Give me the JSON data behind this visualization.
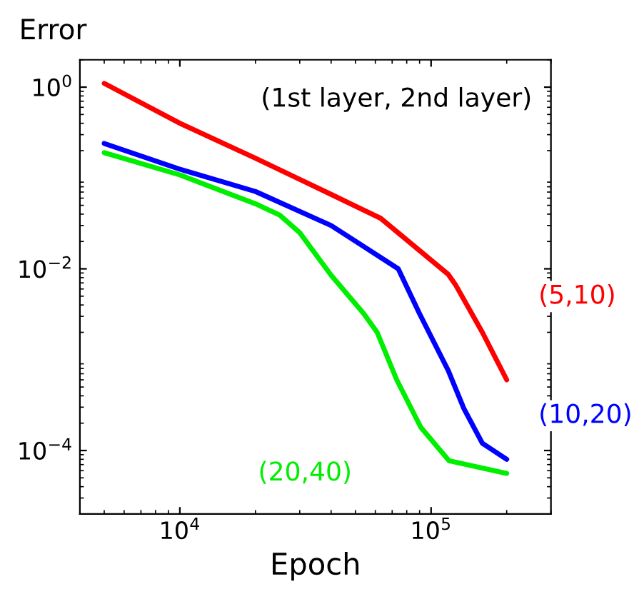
{
  "chart_data": {
    "type": "line",
    "xlabel": "Epoch",
    "ylabel": "Error",
    "log": "xy",
    "grid": false,
    "legend": false,
    "marker": "none",
    "line_style": "solid",
    "annotations": [
      "(1st layer, 2nd layer)"
    ],
    "xlim": [
      4000,
      300000
    ],
    "ylim": [
      2e-05,
      2
    ],
    "xticks": [
      {
        "value": 10000,
        "label": "10$^{4}$"
      },
      {
        "value": 100000,
        "label": "10$^{5}$"
      }
    ],
    "yticks": [
      {
        "value": 1,
        "label": "10$^{0}$"
      },
      {
        "value": 0.01,
        "label": "10$^{−2}$"
      },
      {
        "value": 0.0001,
        "label": "10$^{−4}$"
      }
    ],
    "series": [
      {
        "name": "(5,10)",
        "color": "#ff0000",
        "x": [
          5000,
          10000,
          20000,
          40000,
          63000,
          117000,
          125000,
          160000,
          200000
        ],
        "values": [
          1.1,
          0.4,
          0.165,
          0.066,
          0.036,
          0.0087,
          0.0067,
          0.002,
          0.0006
        ]
      },
      {
        "name": "(10,20)",
        "color": "#0000ff",
        "x": [
          5000,
          10000,
          20000,
          40000,
          74000,
          90000,
          117000,
          135000,
          160000,
          200000
        ],
        "values": [
          0.24,
          0.125,
          0.071,
          0.03,
          0.01,
          0.0032,
          0.00076,
          0.00029,
          0.00012,
          8e-05
        ]
      },
      {
        "name": "(20,40)",
        "color": "#00ee00",
        "x": [
          5000,
          10000,
          20000,
          25000,
          30000,
          40000,
          54000,
          61000,
          73000,
          91000,
          118000,
          200000
        ],
        "values": [
          0.19,
          0.108,
          0.052,
          0.039,
          0.025,
          0.0085,
          0.0032,
          0.002,
          0.0006,
          0.00018,
          7.7e-05,
          5.6e-05
        ]
      }
    ]
  }
}
